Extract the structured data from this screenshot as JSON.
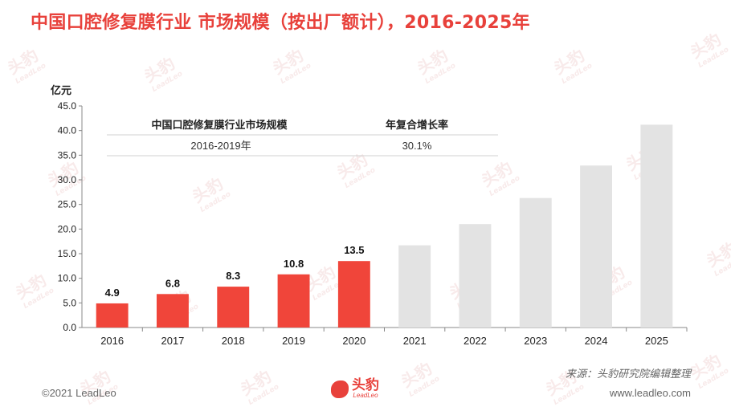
{
  "title": "中国口腔修复膜行业 市场规模（按出厂额计），2016-2025年",
  "chart_data": {
    "type": "bar",
    "unit_label": "亿元",
    "categories": [
      "2016",
      "2017",
      "2018",
      "2019",
      "2020",
      "2021",
      "2022",
      "2023",
      "2024",
      "2025"
    ],
    "values": [
      4.9,
      6.8,
      8.3,
      10.8,
      13.5,
      16.7,
      21.0,
      26.3,
      32.9,
      41.2
    ],
    "value_labels": [
      "4.9",
      "6.8",
      "8.3",
      "10.8",
      "13.5",
      "",
      "",
      "",
      "",
      ""
    ],
    "highlight_count": 5,
    "ylim": [
      0,
      45
    ],
    "yticks": [
      "0.0",
      "5.0",
      "10.0",
      "15.0",
      "20.0",
      "25.0",
      "30.0",
      "35.0",
      "40.0",
      "45.0"
    ],
    "colors": {
      "actual": "#f0453a",
      "forecast": "#e3e3e3"
    },
    "legend_table": {
      "headers": [
        "中国口腔修复膜行业市场规模",
        "年复合增长率"
      ],
      "rows": [
        [
          "2016-2019年",
          "30.1%"
        ]
      ]
    }
  },
  "watermark": {
    "text": "头豹",
    "sub": "LeadLeo"
  },
  "source": "来源：头豹研究院编辑整理",
  "footer": {
    "copyright": "©2021 LeadLeo",
    "website": "www.leadleo.com",
    "logo_text": "头豹",
    "logo_sub": "LeadLeo"
  }
}
